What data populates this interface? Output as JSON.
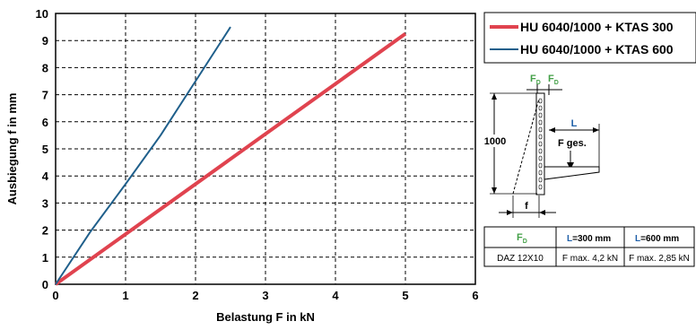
{
  "chart_data": {
    "type": "line",
    "xlabel": "Belastung F in kN",
    "ylabel": "Ausbiegung f in mm",
    "xlim": [
      0,
      6
    ],
    "ylim": [
      0,
      10
    ],
    "xticks": [
      0,
      1,
      2,
      3,
      4,
      5,
      6
    ],
    "yticks": [
      0,
      1,
      2,
      3,
      4,
      5,
      6,
      7,
      8,
      9,
      10
    ],
    "grid": true,
    "legend_position": "right",
    "series": [
      {
        "name": "HU 6040/1000 + KTAS 300",
        "color": "#e0434f",
        "x": [
          0,
          5
        ],
        "y": [
          0,
          9.25
        ]
      },
      {
        "name": "HU 6040/1000 + KTAS 600",
        "color": "#1f5f8b",
        "x": [
          0,
          0.5,
          1,
          1.5,
          2,
          2.5
        ],
        "y": [
          0,
          1.95,
          3.7,
          5.5,
          7.5,
          9.5
        ]
      }
    ]
  },
  "diagram": {
    "fd1": "F",
    "fd1_sub": "D",
    "fd2": "F",
    "fd2_sub": "D",
    "length_label": "L",
    "height_label": "1000",
    "force_label": "F ges.",
    "deflection_label": "f"
  },
  "table": {
    "header_fd": "F",
    "header_fd_sub": "D",
    "header_l300_l": "L",
    "header_l300_rest": "=300 mm",
    "header_l600_l": "L",
    "header_l600_rest": "=600 mm",
    "row_label": "DAZ 12X10",
    "row_300": "F max. 4,2 kN",
    "row_600": "F max. 2,85 kN"
  },
  "colors": {
    "green": "#43a047",
    "blue": "#1e5fa8"
  }
}
